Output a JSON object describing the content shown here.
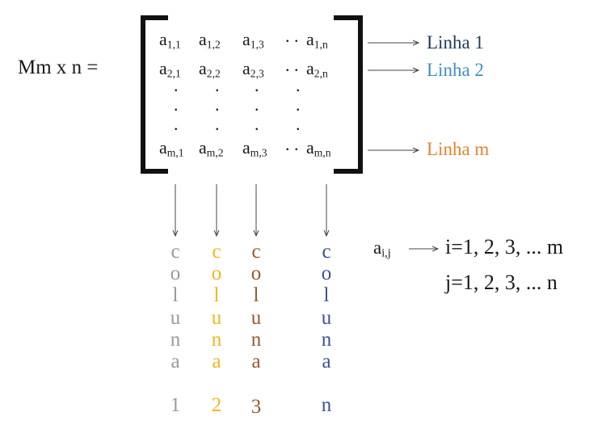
{
  "matrix_label": "Mm x n =",
  "elements": [
    [
      {
        "b": "a",
        "s": "1,1"
      },
      {
        "b": "a",
        "s": "1,2"
      },
      {
        "b": "a",
        "s": "1,3"
      },
      {
        "b": "a",
        "s": "1,n"
      }
    ],
    [
      {
        "b": "a",
        "s": "2,1"
      },
      {
        "b": "a",
        "s": "2,2"
      },
      {
        "b": "a",
        "s": "2,3"
      },
      {
        "b": "a",
        "s": "2,n"
      }
    ],
    [
      {
        "b": "a",
        "s": "m,1"
      },
      {
        "b": "a",
        "s": "m,2"
      },
      {
        "b": "a",
        "s": "m,3"
      },
      {
        "b": "a",
        "s": "m,n"
      }
    ]
  ],
  "rows": [
    {
      "label": "Linha 1",
      "color": "#1f3b57"
    },
    {
      "label": "Linha 2",
      "color": "#3f8fc5"
    },
    {
      "label": "Linha m",
      "color": "#e8822a"
    }
  ],
  "columns": [
    {
      "letters": [
        "c",
        "o",
        "l",
        "u",
        "n",
        "a"
      ],
      "number": "1",
      "color": "#9a9a9a"
    },
    {
      "letters": [
        "c",
        "o",
        "l",
        "u",
        "n",
        "a"
      ],
      "number": "2",
      "color": "#f2b61c"
    },
    {
      "letters": [
        "c",
        "o",
        "l",
        "u",
        "n",
        "a"
      ],
      "number": "3",
      "color": "#9a5a2a"
    },
    {
      "letters": [
        "c",
        "o",
        "l",
        "u",
        "n",
        "a"
      ],
      "number": "n",
      "color": "#3e5294"
    }
  ],
  "index_def": {
    "element": {
      "b": "a",
      "s": "i,j"
    },
    "i_range": "i=1, 2, 3, ... m",
    "j_range": "j=1, 2, 3, ... n"
  }
}
